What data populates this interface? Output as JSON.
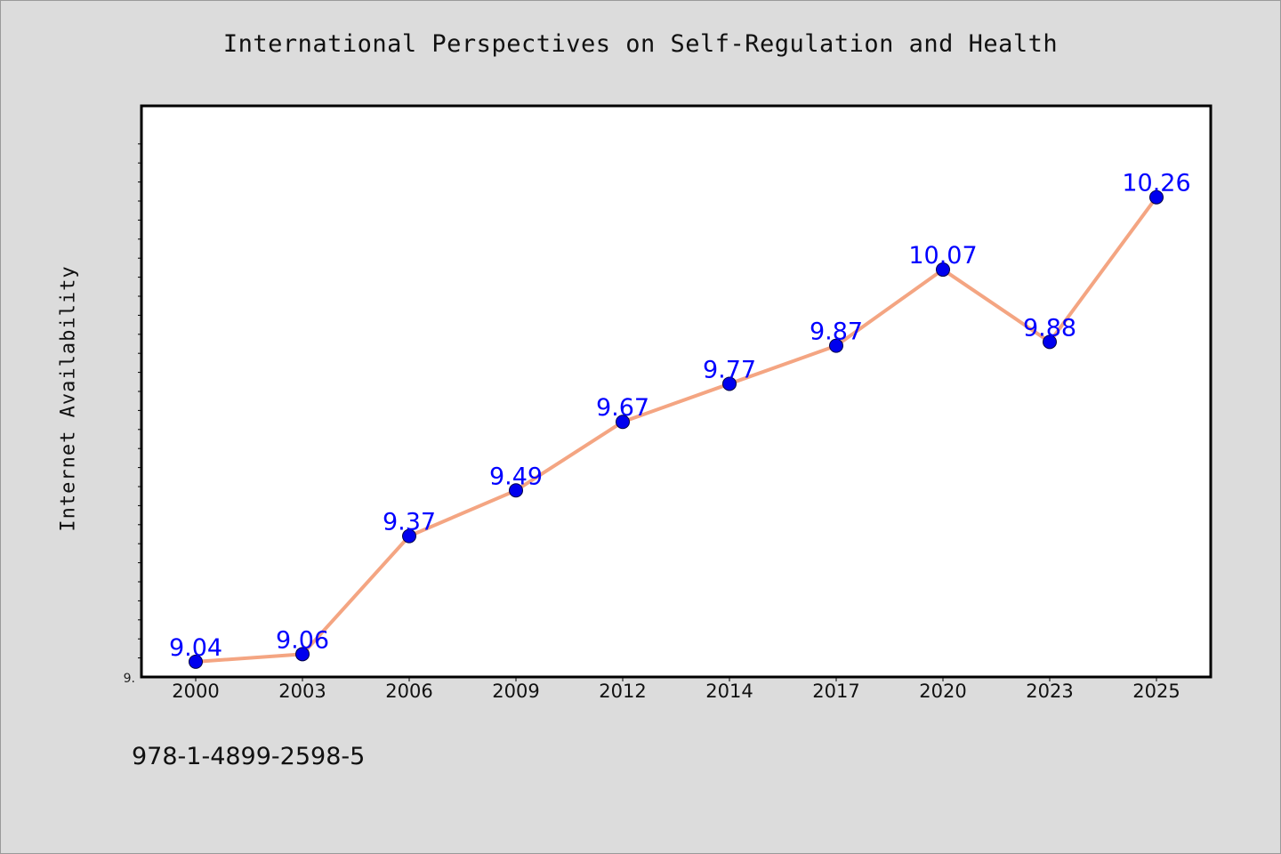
{
  "chart_data": {
    "type": "line",
    "title": "International Perspectives on Self-Regulation and Health",
    "ylabel": "Internet Availability",
    "xlabel": "",
    "categories": [
      "2000",
      "2003",
      "2006",
      "2009",
      "2012",
      "2014",
      "2017",
      "2020",
      "2023",
      "2025"
    ],
    "series": [
      {
        "values": [
          9.04,
          9.06,
          9.37,
          9.49,
          9.67,
          9.77,
          9.87,
          10.07,
          9.88,
          10.26
        ]
      }
    ],
    "data_labels": [
      "9.04",
      "9.06",
      "9.37",
      "9.49",
      "9.67",
      "9.77",
      "9.87",
      "10.07",
      "9.88",
      "10.26"
    ],
    "ylim": [
      9.0,
      10.5
    ],
    "y_tick_labels": [
      "9."
    ],
    "grid": false,
    "legend": "none",
    "colors": {
      "line": "#f4a582",
      "marker": "#0000ee",
      "label": "#0000ff",
      "background": "#dcdcdc",
      "plot_background": "#ffffff"
    }
  },
  "footer": {
    "isbn": "978-1-4899-2598-5"
  }
}
